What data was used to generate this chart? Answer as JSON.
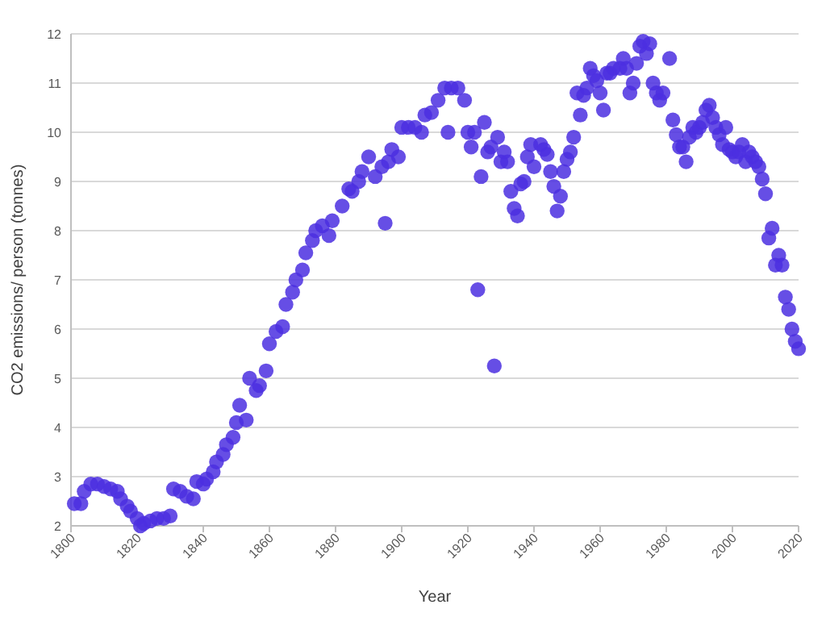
{
  "chart_data": {
    "type": "scatter",
    "xlabel": "Year",
    "ylabel": "CO2 emissions/ person (tonnes)",
    "x": [
      1801,
      1803,
      1804,
      1806,
      1808,
      1810,
      1812,
      1814,
      1815,
      1817,
      1818,
      1820,
      1821,
      1822,
      1824,
      1826,
      1828,
      1830,
      1831,
      1833,
      1835,
      1837,
      1838,
      1840,
      1841,
      1843,
      1844,
      1846,
      1847,
      1849,
      1850,
      1851,
      1853,
      1854,
      1856,
      1857,
      1859,
      1860,
      1862,
      1864,
      1865,
      1867,
      1868,
      1870,
      1871,
      1873,
      1874,
      1876,
      1878,
      1879,
      1882,
      1884,
      1885,
      1887,
      1888,
      1890,
      1892,
      1894,
      1895,
      1896,
      1897,
      1899,
      1900,
      1902,
      1904,
      1906,
      1907,
      1909,
      1911,
      1913,
      1914,
      1915,
      1917,
      1919,
      1920,
      1921,
      1922,
      1923,
      1924,
      1925,
      1926,
      1927,
      1928,
      1929,
      1930,
      1931,
      1932,
      1933,
      1934,
      1935,
      1936,
      1937,
      1938,
      1939,
      1940,
      1942,
      1943,
      1944,
      1945,
      1946,
      1947,
      1948,
      1949,
      1950,
      1951,
      1952,
      1953,
      1954,
      1955,
      1956,
      1957,
      1958,
      1959,
      1960,
      1961,
      1962,
      1963,
      1964,
      1966,
      1967,
      1968,
      1969,
      1970,
      1971,
      1972,
      1973,
      1974,
      1975,
      1976,
      1977,
      1978,
      1979,
      1981,
      1982,
      1983,
      1984,
      1985,
      1986,
      1987,
      1988,
      1989,
      1990,
      1991,
      1992,
      1993,
      1994,
      1995,
      1996,
      1997,
      1998,
      1999,
      2000,
      2001,
      2002,
      2003,
      2004,
      2005,
      2006,
      2007,
      2008,
      2009,
      2010,
      2011,
      2012,
      2013,
      2014,
      2015,
      2016,
      2017,
      2018,
      2019,
      2020
    ],
    "series": [
      {
        "color": "#4b2fe0",
        "values": [
          2.45,
          2.45,
          2.7,
          2.85,
          2.85,
          2.8,
          2.75,
          2.7,
          2.55,
          2.4,
          2.3,
          2.15,
          2.0,
          2.05,
          2.1,
          2.15,
          2.15,
          2.2,
          2.75,
          2.7,
          2.6,
          2.55,
          2.9,
          2.85,
          2.95,
          3.1,
          3.3,
          3.45,
          3.65,
          3.8,
          4.1,
          4.45,
          4.15,
          5.0,
          4.75,
          4.85,
          5.15,
          5.7,
          5.95,
          6.05,
          6.5,
          6.75,
          7.0,
          7.2,
          7.55,
          7.8,
          8.0,
          8.1,
          7.9,
          8.2,
          8.5,
          8.85,
          8.8,
          9.0,
          9.2,
          9.5,
          9.1,
          9.3,
          8.15,
          9.4,
          9.65,
          9.5,
          10.1,
          10.1,
          10.1,
          10.0,
          10.35,
          10.4,
          10.65,
          10.9,
          10.0,
          10.9,
          10.9,
          10.65,
          10.0,
          9.7,
          10.0,
          6.8,
          9.1,
          10.2,
          9.6,
          9.7,
          5.25,
          9.9,
          9.4,
          9.6,
          9.4,
          8.8,
          8.45,
          8.3,
          8.95,
          9.0,
          9.5,
          9.75,
          9.3,
          9.75,
          9.65,
          9.55,
          9.2,
          8.9,
          8.4,
          8.7,
          9.2,
          9.45,
          9.6,
          9.9,
          10.8,
          10.35,
          10.75,
          10.9,
          11.3,
          11.15,
          11.05,
          10.8,
          10.45,
          11.2,
          11.2,
          11.3,
          11.3,
          11.5,
          11.3,
          10.8,
          11.0,
          11.4,
          11.75,
          11.85,
          11.6,
          11.8,
          11.0,
          10.8,
          10.65,
          10.8,
          11.5,
          10.25,
          9.95,
          9.7,
          9.7,
          9.4,
          9.9,
          10.1,
          10.0,
          10.1,
          10.2,
          10.45,
          10.55,
          10.3,
          10.1,
          9.95,
          9.75,
          10.1,
          9.65,
          9.6,
          9.5,
          9.6,
          9.75,
          9.4,
          9.6,
          9.5,
          9.4,
          9.3,
          9.05,
          8.75,
          7.85,
          8.05,
          7.3,
          7.5,
          7.3,
          6.65,
          6.4,
          6.0,
          5.75,
          5.6
        ]
      }
    ],
    "xlim": [
      1800,
      2020
    ],
    "xticks": [
      1800,
      1820,
      1840,
      1860,
      1880,
      1900,
      1920,
      1940,
      1960,
      1980,
      2000,
      2020
    ],
    "ylim": [
      2,
      12
    ],
    "yticks": [
      2,
      3,
      4,
      5,
      6,
      7,
      8,
      9,
      10,
      11,
      12
    ],
    "grid": "y",
    "marker": "circle"
  }
}
